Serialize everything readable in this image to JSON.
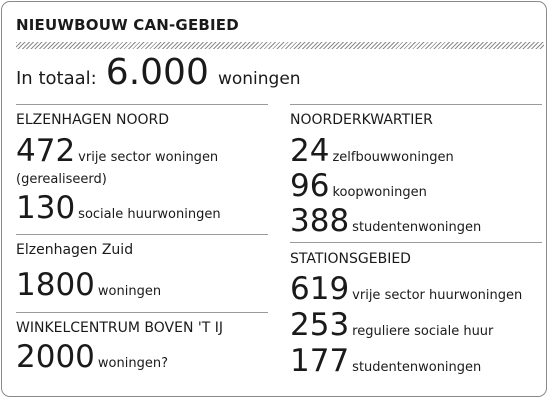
{
  "title": "NIEUWBOUW CAN-GEBIED",
  "total": {
    "label": "In totaal:",
    "value": "6.000",
    "unit": "woningen"
  },
  "left": {
    "elzenhagen_noord": {
      "heading": "ELZENHAGEN NOORD",
      "item1": {
        "value": "472",
        "text": "vrije sector woningen",
        "note": "(gerealiseerd)"
      },
      "item2": {
        "value": "130",
        "text": "sociale huurwoningen"
      }
    },
    "elzenhagen_zuid": {
      "heading": "Elzenhagen Zuid",
      "item1": {
        "value": "1800",
        "text": "woningen"
      }
    },
    "winkelcentrum": {
      "heading": "WINKELCENTRUM BOVEN 'T IJ",
      "item1": {
        "value": "2000",
        "text": "woningen?"
      }
    }
  },
  "right": {
    "noorderkwartier": {
      "heading": "NOORDERKWARTIER",
      "item1": {
        "value": "24",
        "text": "zelfbouwwoningen"
      },
      "item2": {
        "value": "96",
        "text": "koopwoningen"
      },
      "item3": {
        "value": "388",
        "text": "studentenwoningen"
      }
    },
    "stationsgebied": {
      "heading": "STATIONSGEBIED",
      "item1": {
        "value": "619",
        "text": "vrije sector huurwoningen"
      },
      "item2": {
        "value": "253",
        "text": "reguliere sociale huur"
      },
      "item3": {
        "value": "177",
        "text": "studentenwoningen"
      }
    }
  }
}
